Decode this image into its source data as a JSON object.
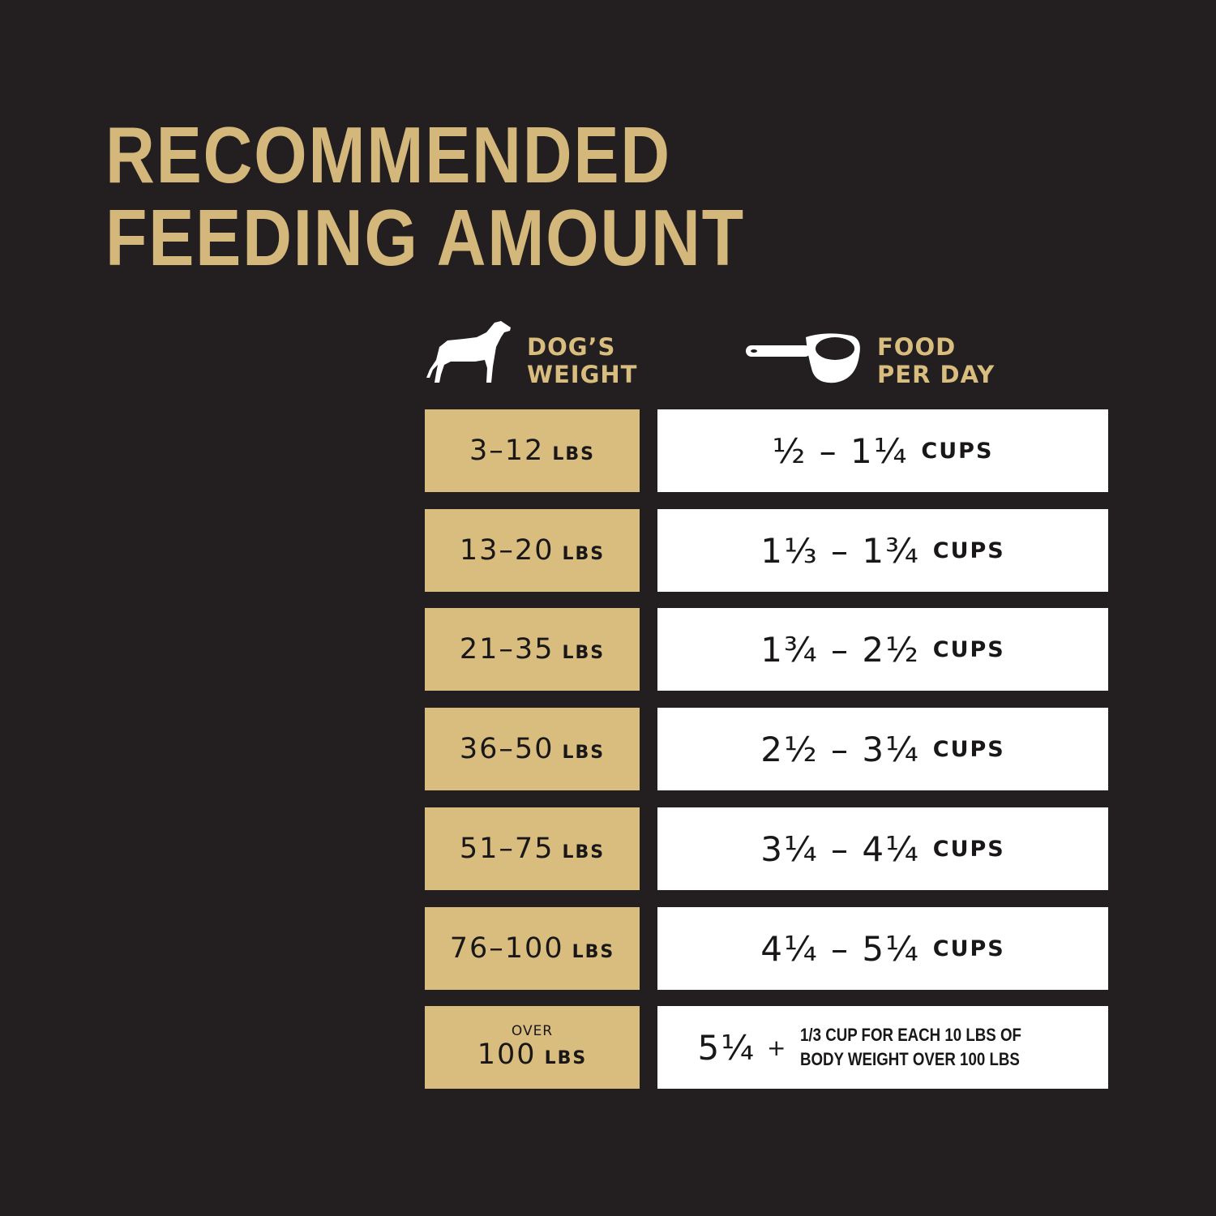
{
  "title": {
    "line1": "RECOMMENDED",
    "line2": "FEEDING AMOUNT"
  },
  "colors": {
    "background": "#231f20",
    "gold": "#d9bd7f",
    "white": "#ffffff",
    "text": "#1a1718"
  },
  "headers": {
    "weight": {
      "icon": "dog-icon",
      "line1": "DOG’S",
      "line2": "WEIGHT"
    },
    "food": {
      "icon": "measuring-cup-icon",
      "line1": "FOOD",
      "line2": "PER DAY"
    }
  },
  "rows": [
    {
      "weight": "3–12",
      "weight_unit": "LBS",
      "food": "½ – 1¼",
      "food_unit": "CUPS"
    },
    {
      "weight": "13–20",
      "weight_unit": "LBS",
      "food": "1⅓ – 1¾",
      "food_unit": "CUPS"
    },
    {
      "weight": "21–35",
      "weight_unit": "LBS",
      "food": "1¾ – 2½",
      "food_unit": "CUPS"
    },
    {
      "weight": "36–50",
      "weight_unit": "LBS",
      "food": "2½ – 3¼",
      "food_unit": "CUPS"
    },
    {
      "weight": "51–75",
      "weight_unit": "LBS",
      "food": "3¼ – 4¼",
      "food_unit": "CUPS"
    },
    {
      "weight": "76–100",
      "weight_unit": "LBS",
      "food": "4¼ – 5¼",
      "food_unit": "CUPS"
    }
  ],
  "last_row": {
    "weight_prefix": "OVER",
    "weight": "100",
    "weight_unit": "LBS",
    "food": "5¼",
    "plus": "+",
    "note_line1": "1/3 CUP FOR EACH 10 LBS OF",
    "note_line2": "BODY WEIGHT OVER 100 LBS"
  }
}
